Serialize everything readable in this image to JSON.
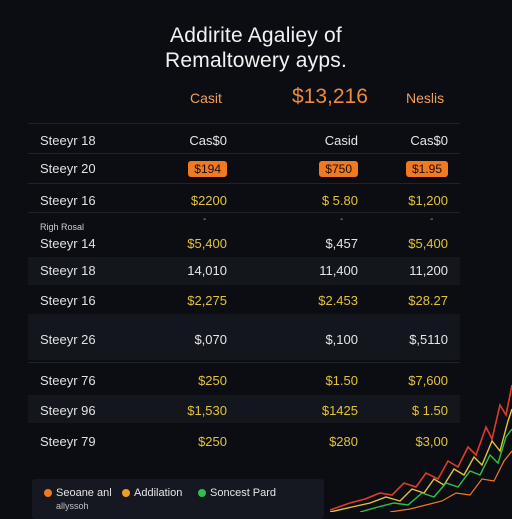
{
  "title": {
    "line1": "Addirite Agaliey of",
    "line2": "Remaltowery ayps."
  },
  "header": {
    "left": "Casit",
    "mid": "$13,216",
    "right": "Neslis"
  },
  "columns": {
    "c1": "Cas$0",
    "c2": "Casid",
    "c3": "Cas$0"
  },
  "rows": [
    {
      "label": "Steeyr 18",
      "v1": "Cas$0",
      "v2": "Casid",
      "v3": "Cas$0"
    },
    {
      "label": "Steeyr 20",
      "v1": "$194",
      "v2": "$750",
      "v3": "$1.95"
    },
    {
      "label": "Steeyr 16",
      "v1": "$2200",
      "v2": "$ 5.80",
      "v3": "$1,200"
    },
    {
      "label": "Steeyr 14",
      "v1": "$5,400",
      "v2": "$,457",
      "v3": "$5,400"
    },
    {
      "label": "Steeyr 18",
      "v1": "14,010",
      "v2": "11,400",
      "v3": "11,200"
    },
    {
      "label": "Steeyr 16",
      "v1": "$2,275",
      "v2": "$2.453",
      "v3": "$28.27"
    },
    {
      "label": "Steeyr 26",
      "v1": "$,070",
      "v2": "$,100",
      "v3": "$,5110"
    },
    {
      "label": "Steeyr 76",
      "v1": "$250",
      "v2": "$1.50",
      "v3": "$7,600"
    },
    {
      "label": "Steeyr 96",
      "v1": "$1,530",
      "v2": "$1425",
      "v3": "$ 1.50"
    },
    {
      "label": "Steeyr 79",
      "v1": "$250",
      "v2": "$280",
      "v3": "$3,00"
    }
  ],
  "subheading": "Righ Rosal",
  "dash": "-",
  "legend": {
    "items": [
      {
        "label": "Seoane anl",
        "color": "#f07a22"
      },
      {
        "label": "Addilation",
        "color": "#f0a020"
      },
      {
        "label": "Soncest Pard",
        "color": "#2fbf4a"
      }
    ],
    "subtext": "allyssoh"
  },
  "colors": {
    "accent": "#f07a22",
    "value_yellow": "#e3c33a",
    "background": "#0b0d12"
  }
}
